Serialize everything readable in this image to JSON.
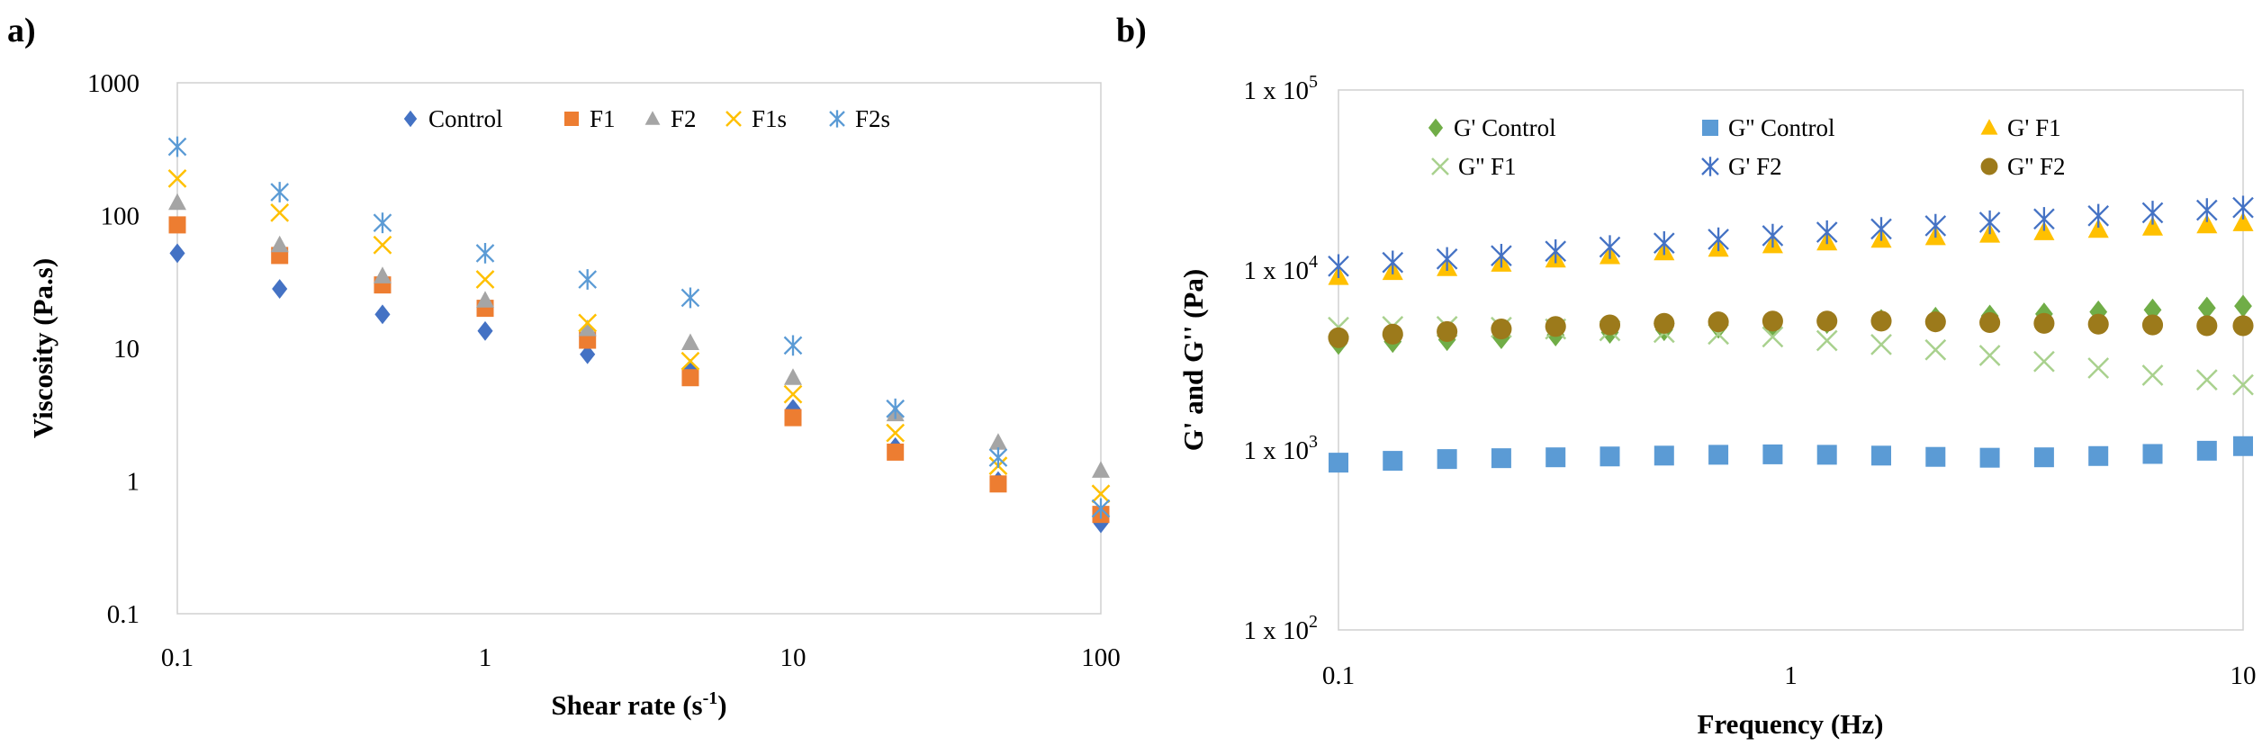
{
  "figure": {
    "panels": [
      {
        "label": "a)"
      },
      {
        "label": "b)"
      }
    ]
  },
  "chart_data": [
    {
      "type": "scatter",
      "panel": "a)",
      "title": "",
      "xlabel": "Shear rate (s-1)",
      "xlabel_main": "Shear rate (s",
      "xlabel_sup": "-1",
      "xlabel_end": ")",
      "ylabel": "Viscosity  (Pa.s)",
      "xscale": "log",
      "yscale": "log",
      "xlim": [
        0.1,
        100
      ],
      "ylim": [
        0.1,
        1000
      ],
      "xticks": [
        0.1,
        1,
        10,
        100
      ],
      "xtick_labels": [
        "0.1",
        "1",
        "10",
        "100"
      ],
      "yticks": [
        0.1,
        1,
        10,
        100,
        1000
      ],
      "ytick_labels": [
        "0.1",
        "1",
        "10",
        "100",
        "1000"
      ],
      "grid": false,
      "legend_position": "top",
      "x": [
        0.1,
        0.215,
        0.464,
        1,
        2.15,
        4.64,
        10,
        21.5,
        46.4,
        100
      ],
      "series": [
        {
          "name": "Control",
          "marker": "diamond",
          "color": "#4472c4",
          "values": [
            52,
            28,
            18,
            13.5,
            9,
            7,
            3.5,
            1.8,
            1.0,
            0.48
          ]
        },
        {
          "name": "F1",
          "marker": "square",
          "color": "#ed7d31",
          "values": [
            85,
            50,
            30,
            20,
            11.5,
            6,
            3.0,
            1.65,
            0.95,
            0.56
          ]
        },
        {
          "name": "F2",
          "marker": "triangle",
          "color": "#a5a5a5",
          "values": [
            125,
            60,
            35,
            23,
            14,
            11,
            6,
            3.2,
            1.95,
            1.2
          ]
        },
        {
          "name": "F1s",
          "marker": "x",
          "color": "#ffc000",
          "values": [
            190,
            105,
            60,
            33,
            15.5,
            8,
            4.5,
            2.3,
            1.3,
            0.8
          ]
        },
        {
          "name": "F2s",
          "marker": "star",
          "color": "#5b9bd5",
          "values": [
            330,
            150,
            88,
            52,
            33,
            24,
            10.5,
            3.5,
            1.5,
            0.62
          ]
        }
      ]
    },
    {
      "type": "scatter",
      "panel": "b)",
      "title": "",
      "xlabel": "Frequency (Hz)",
      "ylabel": "G' and G'' (Pa)",
      "xscale": "log",
      "yscale": "log",
      "xlim": [
        0.1,
        10
      ],
      "ylim": [
        100,
        100000
      ],
      "xticks": [
        0.1,
        1,
        10
      ],
      "xtick_labels": [
        "0.1",
        "1",
        "10"
      ],
      "yticks": [
        100,
        1000,
        10000,
        100000
      ],
      "ytick_label_base": "1 x 10",
      "ytick_label_exponents": [
        "2",
        "3",
        "4",
        "5"
      ],
      "grid": false,
      "legend_position": "top",
      "x": [
        0.1,
        0.1318,
        0.1738,
        0.2291,
        0.302,
        0.3981,
        0.5248,
        0.6918,
        0.912,
        1.2023,
        1.5849,
        2.0893,
        2.7542,
        3.6308,
        4.7863,
        6.3096,
        8.3176,
        10
      ],
      "series": [
        {
          "name": "G' Control",
          "marker": "diamond",
          "color": "#70ad47",
          "values": [
            3900,
            4000,
            4100,
            4200,
            4350,
            4500,
            4650,
            4800,
            4950,
            5100,
            5250,
            5400,
            5550,
            5700,
            5850,
            6000,
            6150,
            6300
          ]
        },
        {
          "name": "G'' Control",
          "marker": "square",
          "color": "#5b9bd5",
          "values": [
            850,
            870,
            890,
            900,
            910,
            920,
            930,
            940,
            945,
            940,
            930,
            915,
            905,
            910,
            925,
            950,
            990,
            1050
          ]
        },
        {
          "name": "G' F1",
          "marker": "triangle",
          "color": "#ffc000",
          "values": [
            9200,
            9800,
            10300,
            10900,
            11500,
            12000,
            12600,
            13200,
            13800,
            14300,
            14800,
            15300,
            15800,
            16300,
            16800,
            17300,
            17800,
            18300
          ]
        },
        {
          "name": "G'' F1",
          "marker": "x",
          "color": "#a9d18e",
          "values": [
            4800,
            4850,
            4850,
            4800,
            4700,
            4600,
            4500,
            4400,
            4250,
            4050,
            3850,
            3600,
            3350,
            3100,
            2850,
            2600,
            2450,
            2300
          ]
        },
        {
          "name": "G' F2",
          "marker": "star",
          "color": "#4472c4",
          "values": [
            10500,
            11000,
            11500,
            12000,
            12700,
            13400,
            14100,
            14800,
            15500,
            16200,
            16900,
            17600,
            18400,
            19200,
            20000,
            20800,
            21500,
            22200
          ]
        },
        {
          "name": "G'' F2",
          "marker": "circle",
          "color": "#9c7a1b",
          "values": [
            4200,
            4400,
            4550,
            4700,
            4850,
            4950,
            5050,
            5150,
            5200,
            5200,
            5200,
            5150,
            5100,
            5050,
            5000,
            4950,
            4900,
            4900
          ]
        }
      ]
    }
  ]
}
